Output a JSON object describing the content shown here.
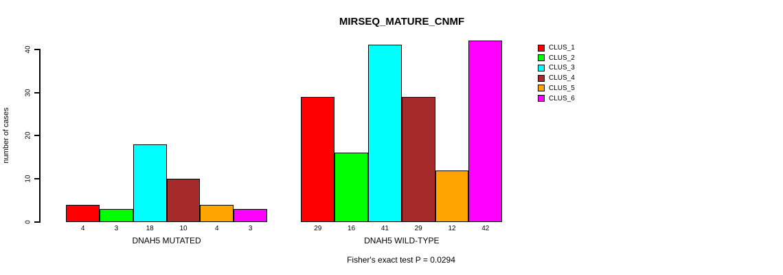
{
  "figure": {
    "background": "#ffffff"
  },
  "chart_data": {
    "type": "bar",
    "title": "MIRSEQ_MATURE_CNMF",
    "ylabel": "number of cases",
    "xlabel": "",
    "yticks": [
      0,
      10,
      20,
      30,
      40
    ],
    "ylim": [
      0,
      42
    ],
    "grid": false,
    "legend_position": "right-outside",
    "series_labels": [
      "CLUS_1",
      "CLUS_2",
      "CLUS_3",
      "CLUS_4",
      "CLUS_5",
      "CLUS_6"
    ],
    "colors": [
      "#FF0000",
      "#00FF00",
      "#00FFFF",
      "#A52A2A",
      "#FFA500",
      "#FF00FF"
    ],
    "groups": [
      {
        "label": "DNAH5 MUTATED",
        "values": [
          4,
          3,
          18,
          10,
          4,
          3
        ],
        "bar_labels": [
          "4",
          "3",
          "18",
          "10",
          "4",
          "3"
        ]
      },
      {
        "label": "DNAH5 WILD-TYPE",
        "values": [
          29,
          16,
          41,
          29,
          12,
          42
        ],
        "bar_labels": [
          "29",
          "16",
          "41",
          "29",
          "12",
          "42"
        ]
      }
    ],
    "annotation": "Fisher's exact test P = 0.0294"
  }
}
